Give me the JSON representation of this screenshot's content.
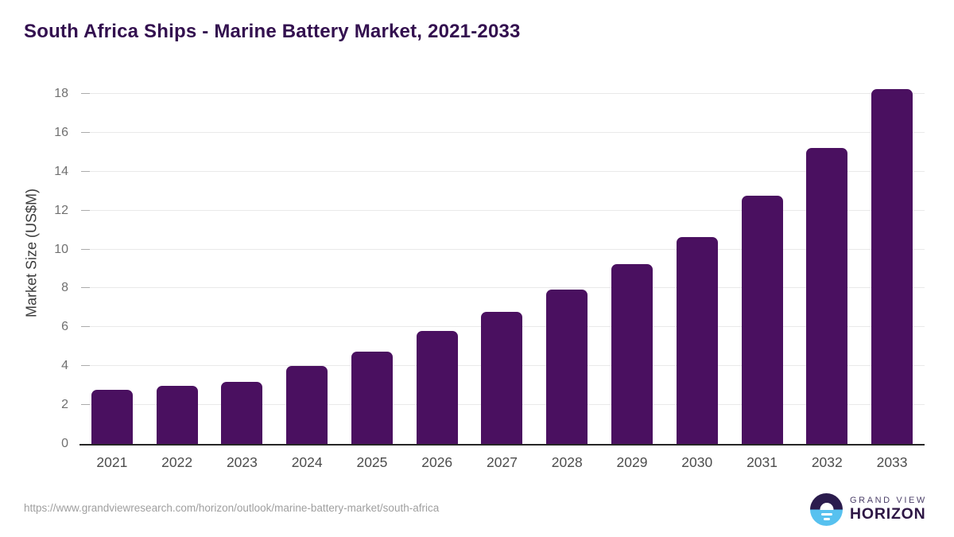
{
  "title": "South Africa Ships - Marine Battery Market, 2021-2033",
  "chart_data": {
    "type": "bar",
    "categories": [
      "2021",
      "2022",
      "2023",
      "2024",
      "2025",
      "2026",
      "2027",
      "2028",
      "2029",
      "2030",
      "2031",
      "2032",
      "2033"
    ],
    "values": [
      2.8,
      3.0,
      3.2,
      4.0,
      4.75,
      5.8,
      6.8,
      7.95,
      9.25,
      10.65,
      12.75,
      15.2,
      18.25
    ],
    "title": "South Africa Ships - Marine Battery Market, 2021-2033",
    "xlabel": "",
    "ylabel": "Market Size (US$M)",
    "ylim": [
      0,
      18
    ],
    "ytick_step": 2,
    "grid": true,
    "legend": "none",
    "bar_color": "#4a1060"
  },
  "footer": {
    "source_url": "https://www.grandviewresearch.com/horizon/outlook/marine-battery-market/south-africa",
    "logo": {
      "top_text": "GRAND VIEW",
      "bottom_text": "HORIZON"
    }
  },
  "colors": {
    "title_text": "#33104f",
    "bar": "#4a1060",
    "gridline": "#e9e9e9",
    "axis_line": "#262626",
    "ytick_label": "#707070",
    "xtick_label": "#4d4d4d",
    "url_text": "#9f9f9f",
    "logo_dark_half": "#2b1c4d",
    "logo_blue_half": "#57c1ef",
    "logo_top_text": "#4b3f68",
    "logo_bottom_text": "#2e1745"
  }
}
